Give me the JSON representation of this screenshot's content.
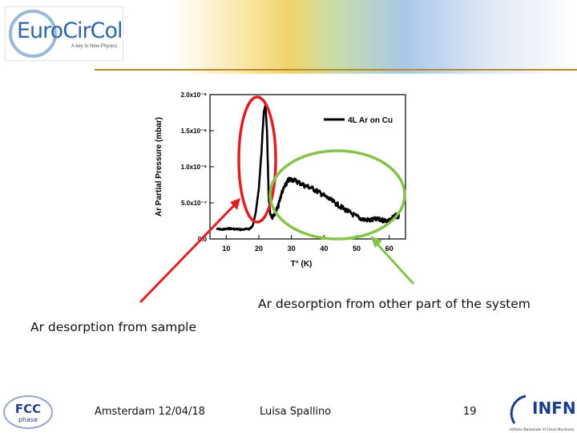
{
  "header": {
    "logo_main": "EuroCirCol",
    "logo_tagline": "A key to New Physics"
  },
  "chart_data": {
    "type": "line",
    "title": "",
    "xlabel": "T° (K)",
    "ylabel": "Ar Partial Pressure (mbar)",
    "xlim": [
      5,
      65
    ],
    "ylim": [
      0,
      2e-05
    ],
    "x_ticks": [
      "10",
      "20",
      "30",
      "40",
      "50",
      "60"
    ],
    "y_ticks": [
      "0.0",
      "5.0x10⁻⁷",
      "1.0x10⁻⁶",
      "1.5x10⁻⁶",
      "2.0x10⁻⁶"
    ],
    "legend": "top-right",
    "series": [
      {
        "name": "4L Ar on Cu",
        "color": "#000000",
        "x": [
          7,
          9,
          11,
          13,
          15,
          17,
          18,
          19,
          20,
          20.8,
          21.5,
          22,
          22.5,
          23,
          23.5,
          24,
          25,
          26,
          27,
          28,
          29,
          30,
          32,
          34,
          36,
          38,
          40,
          42,
          44,
          46,
          48,
          50,
          52,
          54,
          56,
          58,
          60,
          62,
          63
        ],
        "y": [
          1.4e-06,
          1.3e-06,
          1.45e-06,
          1.35e-06,
          1.3e-06,
          1.4e-06,
          1.7e-06,
          3.5e-06,
          7e-06,
          1.2e-05,
          1.75e-05,
          1.85e-05,
          1.5e-05,
          6e-06,
          3.5e-06,
          3e-06,
          3.6e-06,
          4.6e-06,
          6.4e-06,
          7.3e-06,
          8.1e-06,
          8.3e-06,
          7.9e-06,
          7.4e-06,
          7.1e-06,
          6.6e-06,
          6e-06,
          5.4e-06,
          4.8e-06,
          4.2e-06,
          3.6e-06,
          3.1e-06,
          2.7e-06,
          2.6e-06,
          2.7e-06,
          2.6e-06,
          2.6e-06,
          3.2e-06,
          3.1e-06
        ]
      }
    ],
    "annotations": [
      {
        "label": "Ar desorption from sample",
        "shape": "ellipse",
        "color": "#e02020"
      },
      {
        "label": "Ar desorption from other part of the system",
        "shape": "ellipse",
        "color": "#86c34a"
      }
    ]
  },
  "captions": {
    "other_part": "Ar desorption from other part of the system",
    "sample": "Ar desorption from sample"
  },
  "footer": {
    "fcc_logo": "FCC",
    "fcc_sub": "phase",
    "location_date": "Amsterdam 12/04/18",
    "author": "Luisa Spallino",
    "page_number": "19",
    "infn_logo": "INFN",
    "infn_sub": "Istituto Nazionale di Fisica Nucleare"
  }
}
